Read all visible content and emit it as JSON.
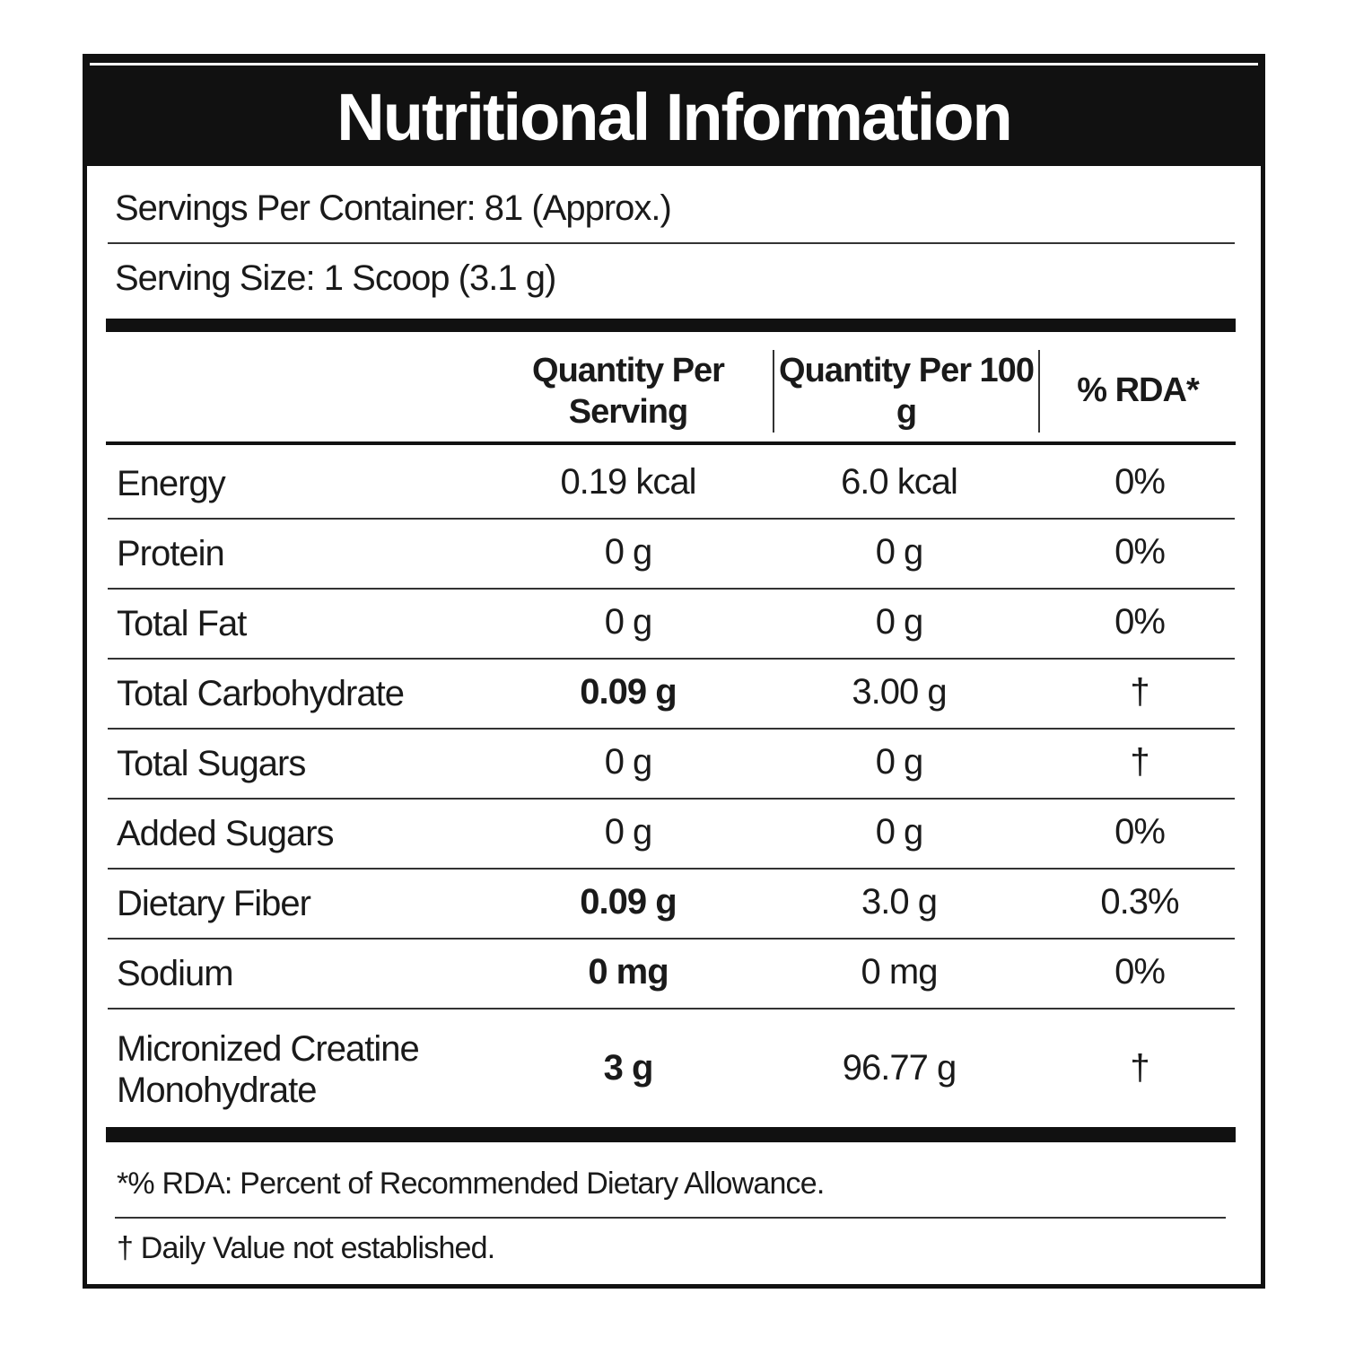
{
  "header": {
    "title": "Nutritional Information"
  },
  "info": {
    "servings": "Servings Per Container: 81 (Approx.)",
    "serving_size": "Serving Size: 1 Scoop (3.1 g)"
  },
  "table": {
    "columns": [
      "Quantity Per Serving",
      "Quantity Per 100 g",
      "% RDA*"
    ],
    "rows": [
      [
        "Energy",
        "0.19 kcal",
        "6.0 kcal",
        "0%"
      ],
      [
        "Protein",
        "0 g",
        "0 g",
        "0%"
      ],
      [
        "Total Fat",
        "0 g",
        "0 g",
        "0%"
      ],
      [
        "Total Carbohydrate",
        "0.09 g",
        "3.00 g",
        "†"
      ],
      [
        "Total Sugars",
        "0 g",
        "0 g",
        "†"
      ],
      [
        "Added Sugars",
        "0 g",
        "0 g",
        "0%"
      ],
      [
        "Dietary Fiber",
        "0.09 g",
        "3.0 g",
        "0.3%"
      ],
      [
        "Sodium",
        "0 mg",
        "0 mg",
        "0%"
      ],
      [
        "Micronized Creatine Monohydrate",
        "3 g",
        "96.77 g",
        "†"
      ]
    ]
  },
  "footnotes": [
    "*% RDA: Percent of Recommended Dietary Allowance.",
    "† Daily Value not established."
  ]
}
